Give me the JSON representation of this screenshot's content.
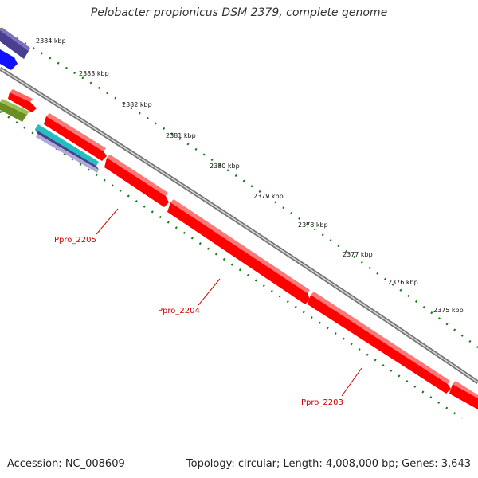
{
  "title": "Pelobacter propionicus DSM 2379, complete genome",
  "footer": {
    "accession": "Accession: NC_008609",
    "summary": "Topology: circular; Length: 4,008,000 bp; Genes: 3,643"
  },
  "ticks": [
    "2384 kbp",
    "2383 kbp",
    "2382 kbp",
    "2381 kbp",
    "2380 kbp",
    "2379 kbp",
    "2378 kbp",
    "2377 kbp",
    "2376 kbp",
    "2375 kbp"
  ],
  "genes": [
    {
      "name": "Ppro_2205"
    },
    {
      "name": "Ppro_2204"
    },
    {
      "name": "Ppro_2203"
    }
  ],
  "colors": {
    "cds_red": "#ff0000",
    "cds_dark_red": "#b30000",
    "backbone": "#888888",
    "tick_green": "#1a7a1a",
    "navy": "#4a3f8f",
    "blue": "#1010ff",
    "olive": "#6b8e23",
    "cyan": "#20c0c0"
  }
}
